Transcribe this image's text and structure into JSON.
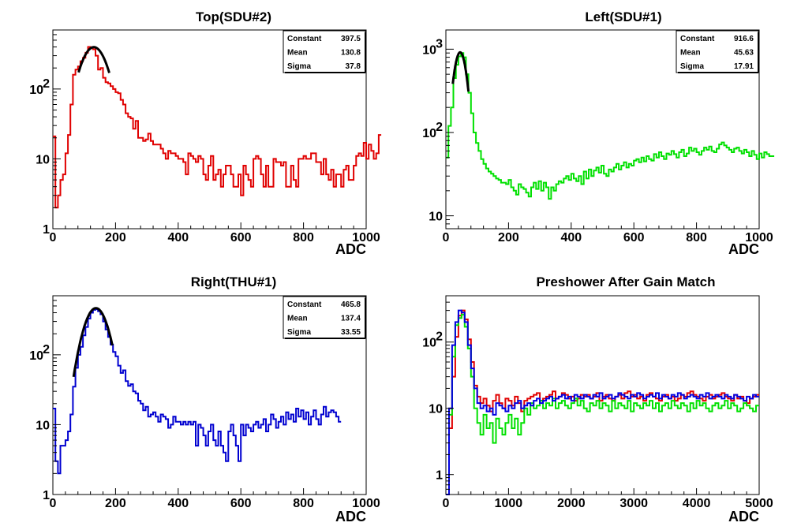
{
  "chart_data": [
    {
      "type": "histogram",
      "title": "Top(SDU#2)",
      "xlabel": "ADC",
      "ylabel": "",
      "xlim": [
        0,
        1000
      ],
      "ylim": [
        1,
        700
      ],
      "yscale": "log",
      "grid": false,
      "x_ticks": [
        "0",
        "200",
        "400",
        "600",
        "800",
        "1000"
      ],
      "y_ticks": [
        {
          "value": 1,
          "label": "1"
        },
        {
          "value": 10,
          "label": "10"
        },
        {
          "value": 100,
          "label": "10",
          "exp": "2"
        }
      ],
      "color": "#e00000",
      "stats": [
        {
          "name": "Constant",
          "value": "397.5"
        },
        {
          "name": "Mean",
          "value": "130.8"
        },
        {
          "name": "Sigma",
          "value": "37.8"
        }
      ],
      "fit": {
        "constant": 397.5,
        "mean": 130.8,
        "sigma": 37.8,
        "range": [
          82,
          180
        ]
      },
      "bin_width": 8,
      "counts": [
        21,
        2,
        3,
        5,
        6,
        12,
        22,
        60,
        160,
        190,
        210,
        250,
        280,
        330,
        400,
        390,
        370,
        300,
        190,
        200,
        145,
        125,
        120,
        110,
        100,
        90,
        87,
        70,
        60,
        45,
        40,
        38,
        27,
        35,
        20,
        20,
        18,
        19,
        23,
        18,
        16,
        16,
        16,
        14,
        12,
        10,
        13,
        12,
        12,
        11,
        10,
        10,
        9,
        6,
        12,
        11,
        10,
        9,
        11,
        10,
        6,
        5,
        8,
        11,
        5,
        6,
        7,
        4,
        6,
        8,
        8,
        6,
        4,
        4,
        6,
        3,
        8,
        6,
        5,
        4,
        10,
        11,
        10,
        6,
        4,
        8,
        4,
        4,
        10,
        9,
        9,
        8,
        9,
        4,
        4,
        8,
        5,
        4,
        10,
        10,
        11,
        10,
        10,
        12,
        12,
        9,
        9,
        6,
        10,
        6,
        5,
        7,
        4,
        6,
        6,
        4,
        7,
        8,
        5,
        5,
        8,
        11,
        12,
        11,
        17,
        10,
        16,
        13,
        10,
        12,
        22
      ]
    },
    {
      "type": "histogram",
      "title": "Left(SDU#1)",
      "xlabel": "ADC",
      "ylabel": "",
      "xlim": [
        0,
        1000
      ],
      "ylim": [
        7,
        1700
      ],
      "yscale": "log",
      "grid": false,
      "x_ticks": [
        "0",
        "200",
        "400",
        "600",
        "800",
        "1000"
      ],
      "y_ticks": [
        {
          "value": 10,
          "label": "10"
        },
        {
          "value": 100,
          "label": "10",
          "exp": "2"
        },
        {
          "value": 1000,
          "label": "10",
          "exp": "3"
        }
      ],
      "color": "#00e000",
      "stats": [
        {
          "name": "Constant",
          "value": "916.6"
        },
        {
          "name": "Mean",
          "value": "45.63"
        },
        {
          "name": "Sigma",
          "value": "17.91"
        }
      ],
      "fit": {
        "constant": 916.6,
        "mean": 45.63,
        "sigma": 17.91,
        "range": [
          22,
          72
        ]
      },
      "bin_width": 8,
      "counts": [
        50,
        120,
        200,
        450,
        650,
        820,
        900,
        800,
        500,
        300,
        170,
        100,
        75,
        60,
        48,
        42,
        37,
        34,
        32,
        30,
        28,
        27,
        25,
        25,
        24,
        27,
        22,
        20,
        18,
        24,
        22,
        21,
        19,
        17,
        22,
        25,
        21,
        26,
        20,
        25,
        22,
        16,
        22,
        20,
        24,
        26,
        25,
        28,
        30,
        27,
        32,
        28,
        26,
        30,
        24,
        34,
        28,
        36,
        30,
        35,
        38,
        33,
        40,
        32,
        30,
        36,
        34,
        38,
        42,
        36,
        40,
        44,
        38,
        42,
        40,
        46,
        48,
        44,
        50,
        45,
        52,
        48,
        46,
        55,
        50,
        58,
        52,
        48,
        56,
        54,
        60,
        55,
        50,
        58,
        62,
        52,
        56,
        66,
        60,
        64,
        58,
        54,
        60,
        66,
        62,
        68,
        60,
        58,
        64,
        72,
        76,
        70,
        66,
        62,
        58,
        64,
        66,
        60,
        56,
        62,
        58,
        52,
        60,
        54,
        48,
        56,
        50,
        58,
        55,
        52,
        52
      ]
    },
    {
      "type": "histogram",
      "title": "Right(THU#1)",
      "xlabel": "ADC",
      "ylabel": "",
      "xlim": [
        0,
        1000
      ],
      "ylim": [
        1,
        700
      ],
      "yscale": "log",
      "grid": false,
      "x_ticks": [
        "0",
        "200",
        "400",
        "600",
        "800",
        "1000"
      ],
      "y_ticks": [
        {
          "value": 1,
          "label": "1"
        },
        {
          "value": 10,
          "label": "10"
        },
        {
          "value": 100,
          "label": "10",
          "exp": "2"
        }
      ],
      "color": "#0000d0",
      "stats": [
        {
          "name": "Constant",
          "value": "465.8"
        },
        {
          "name": "Mean",
          "value": "137.4"
        },
        {
          "name": "Sigma",
          "value": "33.55"
        }
      ],
      "fit": {
        "constant": 465.8,
        "mean": 137.4,
        "sigma": 33.55,
        "range": [
          66,
          190
        ]
      },
      "bin_width": 8,
      "counts": [
        17,
        3,
        2,
        5,
        5,
        6,
        8,
        14,
        35,
        65,
        100,
        130,
        190,
        250,
        330,
        400,
        440,
        450,
        420,
        380,
        300,
        230,
        180,
        140,
        110,
        95,
        70,
        55,
        60,
        42,
        36,
        38,
        30,
        28,
        22,
        20,
        16,
        18,
        13,
        14,
        15,
        13,
        11,
        14,
        13,
        12,
        9,
        10,
        13,
        11,
        11,
        10,
        11,
        10,
        11,
        10,
        11,
        5,
        10,
        9,
        7,
        5,
        8,
        10,
        6,
        5,
        8,
        5,
        4,
        3,
        8,
        10,
        7,
        5,
        3,
        10,
        7,
        10,
        9,
        8,
        10,
        11,
        9,
        10,
        12,
        8,
        10,
        14,
        12,
        9,
        11,
        13,
        10,
        15,
        12,
        14,
        11,
        17,
        13,
        16,
        12,
        15,
        10,
        13,
        16,
        12,
        10,
        14,
        18,
        13,
        15,
        16,
        15,
        13,
        11
      ]
    },
    {
      "type": "histogram",
      "title": "Preshower After Gain Match",
      "xlabel": "ADC",
      "ylabel": "",
      "xlim": [
        0,
        5000
      ],
      "ylim": [
        0.5,
        500
      ],
      "yscale": "log",
      "grid": false,
      "x_ticks": [
        "0",
        "1000",
        "2000",
        "3000",
        "4000",
        "5000"
      ],
      "y_ticks": [
        {
          "value": 1,
          "label": "1"
        },
        {
          "value": 10,
          "label": "10"
        },
        {
          "value": 100,
          "label": "10",
          "exp": "2"
        }
      ],
      "series": [
        {
          "color": "#e00000",
          "counts": [
            0.5,
            5,
            30,
            120,
            250,
            300,
            220,
            110,
            50,
            22,
            15,
            12,
            14,
            11,
            9,
            13,
            16,
            12,
            10,
            14,
            13,
            11,
            15,
            12,
            9,
            13,
            14,
            15,
            16,
            17,
            13,
            14,
            15,
            16,
            18,
            14,
            15,
            17,
            16,
            14,
            15,
            13,
            14,
            16,
            15,
            16,
            14,
            15,
            17,
            13,
            15,
            16,
            14,
            13,
            15,
            16,
            14,
            17,
            18,
            15,
            16,
            14,
            15,
            13,
            16,
            17,
            15,
            14,
            13,
            15,
            16,
            14,
            15,
            13,
            14,
            16,
            15,
            17,
            18,
            16,
            15,
            14,
            13,
            15,
            16,
            14,
            15,
            16,
            17,
            15,
            14,
            13,
            16,
            14,
            15,
            13,
            12,
            14,
            15,
            16
          ]
        },
        {
          "color": "#00e000",
          "counts": [
            0.5,
            8,
            60,
            180,
            230,
            260,
            170,
            80,
            30,
            10,
            6,
            4,
            8,
            5,
            6,
            3,
            7,
            5,
            4,
            6,
            8,
            5,
            7,
            4,
            6,
            10,
            8,
            12,
            10,
            11,
            13,
            10,
            12,
            11,
            14,
            10,
            12,
            13,
            11,
            10,
            12,
            14,
            11,
            13,
            10,
            9,
            12,
            11,
            13,
            10,
            12,
            11,
            9,
            13,
            10,
            12,
            11,
            10,
            13,
            9,
            12,
            11,
            10,
            12,
            11,
            13,
            10,
            12,
            9,
            11,
            12,
            10,
            13,
            11,
            10,
            12,
            11,
            9,
            12,
            10,
            13,
            11,
            12,
            10,
            9,
            11,
            12,
            10,
            11,
            13,
            10,
            12,
            11,
            9,
            10,
            12,
            11,
            10,
            9,
            11
          ]
        },
        {
          "color": "#0000e0",
          "counts": [
            0.5,
            10,
            90,
            200,
            300,
            280,
            200,
            90,
            40,
            20,
            12,
            10,
            11,
            9,
            10,
            8,
            12,
            11,
            10,
            9,
            11,
            10,
            12,
            13,
            10,
            11,
            12,
            11,
            13,
            14,
            12,
            13,
            14,
            15,
            13,
            14,
            15,
            16,
            14,
            15,
            13,
            16,
            15,
            14,
            16,
            15,
            14,
            16,
            15,
            17,
            14,
            15,
            16,
            14,
            15,
            17,
            16,
            15,
            14,
            16,
            15,
            17,
            16,
            14,
            15,
            16,
            15,
            17,
            14,
            16,
            15,
            14,
            16,
            15,
            17,
            16,
            14,
            15,
            16,
            15,
            14,
            16,
            15,
            17,
            14,
            15,
            16,
            15,
            14,
            16,
            15,
            14,
            16,
            15,
            14,
            13,
            15,
            14,
            16,
            15
          ]
        }
      ]
    }
  ]
}
